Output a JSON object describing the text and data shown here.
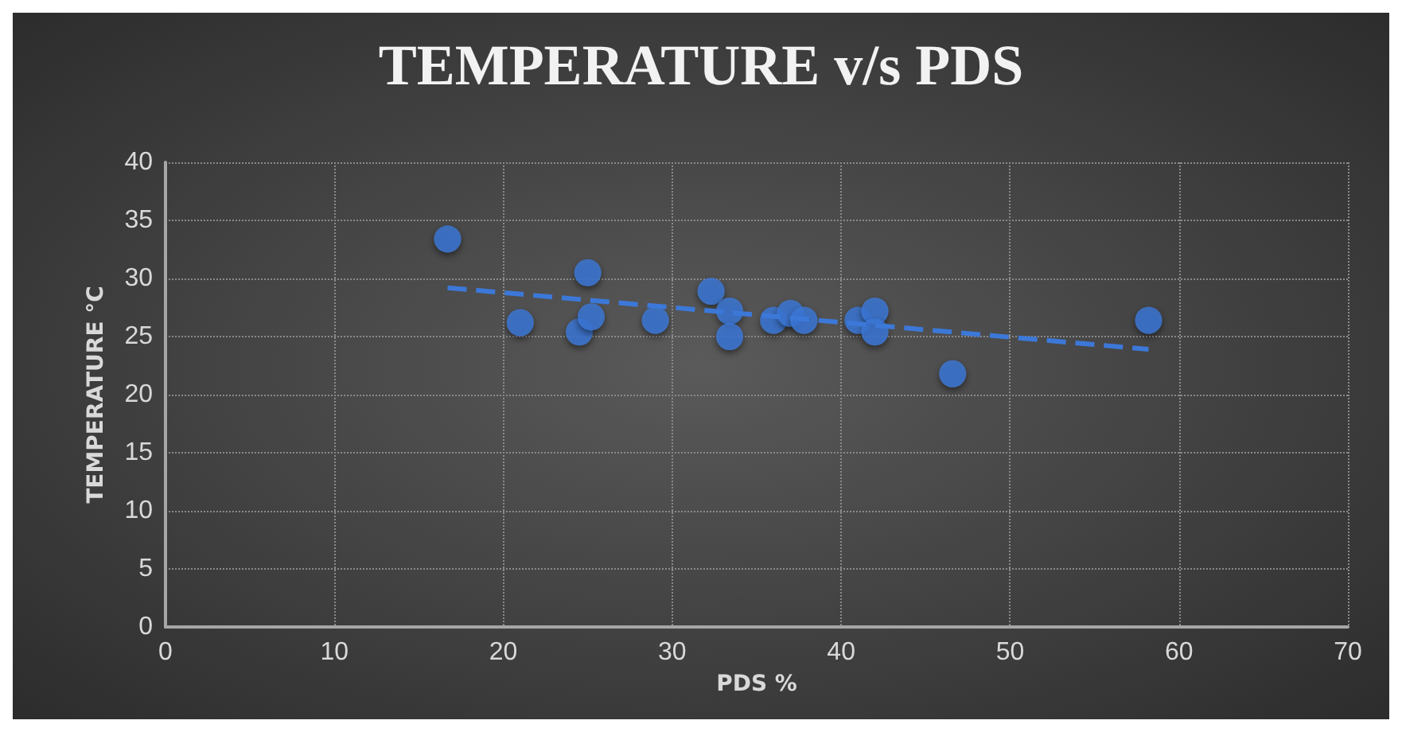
{
  "chart_data": {
    "type": "scatter",
    "title": "TEMPERATURE v/s PDS",
    "xlabel": "PDS %",
    "ylabel": "TEMPERATURE °C",
    "xlim": [
      0,
      70
    ],
    "xticks": [
      0,
      10,
      20,
      30,
      40,
      50,
      60,
      70
    ],
    "ylim": [
      0,
      40
    ],
    "yticks": [
      0,
      5,
      10,
      15,
      20,
      25,
      30,
      35,
      40
    ],
    "grid": true,
    "marker": "circle",
    "series": [
      {
        "color": "#3c78d8",
        "x": [
          16.7,
          21,
          24.5,
          25,
          25.2,
          29,
          32.3,
          33.4,
          33.4,
          36,
          37,
          37.8,
          41,
          42,
          42,
          46.6,
          58.2
        ],
        "values": [
          33.4,
          26.2,
          25.4,
          30.5,
          26.7,
          26.4,
          28.9,
          27.2,
          25,
          26.4,
          27,
          26.4,
          26.4,
          27.2,
          25.4,
          21.8,
          26.4
        ]
      },
      {
        "type": "line",
        "color": "#3c78d8",
        "line_style": "dashed",
        "marker": "none",
        "x": [
          16.7,
          58.2
        ],
        "values": [
          29.2,
          23.9
        ]
      }
    ]
  }
}
